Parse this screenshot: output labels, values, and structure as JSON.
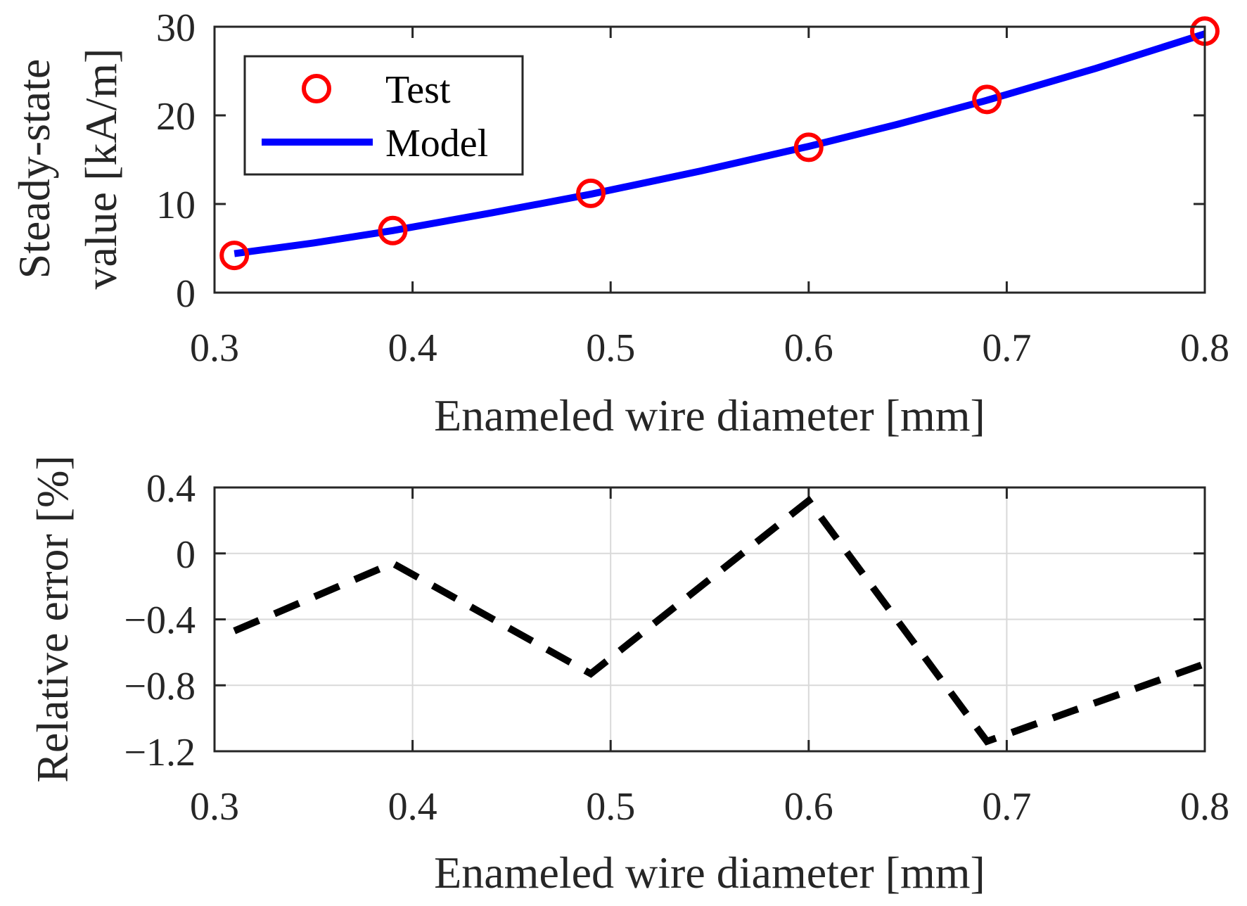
{
  "chart_data": [
    {
      "type": "line",
      "title": "",
      "xlabel": "Enameled wire diameter [mm]",
      "ylabel_lines": [
        "Steady-state",
        "value [kA/m]"
      ],
      "xlim": [
        0.3,
        0.8
      ],
      "ylim": [
        0,
        30
      ],
      "xticks": [
        0.3,
        0.4,
        0.5,
        0.6,
        0.7,
        0.8
      ],
      "xtick_labels": [
        "0.3",
        "0.4",
        "0.5",
        "0.6",
        "0.7",
        "0.8"
      ],
      "yticks": [
        0,
        10,
        20,
        30
      ],
      "ytick_labels": [
        "0",
        "10",
        "20",
        "30"
      ],
      "grid": false,
      "legend_position": "top-left",
      "series": [
        {
          "name": "Test",
          "style": "markers",
          "marker": "circle",
          "color": "#ff0000",
          "x": [
            0.31,
            0.39,
            0.49,
            0.6,
            0.69,
            0.8
          ],
          "y": [
            4.2,
            7.0,
            11.2,
            16.4,
            21.8,
            29.5
          ]
        },
        {
          "name": "Model",
          "style": "solid",
          "color": "#0000ff",
          "x": [
            0.31,
            0.35,
            0.39,
            0.44,
            0.49,
            0.545,
            0.6,
            0.645,
            0.69,
            0.745,
            0.8
          ],
          "y": [
            4.4,
            5.6,
            7.0,
            9.0,
            11.1,
            13.7,
            16.5,
            19.0,
            21.7,
            25.3,
            29.2
          ]
        }
      ]
    },
    {
      "type": "line",
      "title": "",
      "xlabel": "Enameled wire diameter [mm]",
      "ylabel": "Relative error [%]",
      "xlim": [
        0.3,
        0.8
      ],
      "ylim": [
        -1.2,
        0.4
      ],
      "xticks": [
        0.3,
        0.4,
        0.5,
        0.6,
        0.7,
        0.8
      ],
      "xtick_labels": [
        "0.3",
        "0.4",
        "0.5",
        "0.6",
        "0.7",
        "0.8"
      ],
      "yticks": [
        0.4,
        0,
        -0.4,
        -0.8,
        -1.2
      ],
      "ytick_labels": [
        "0.4",
        "0",
        "−0.4",
        "−0.8",
        "−1.2"
      ],
      "grid": true,
      "series": [
        {
          "name": "Relative error",
          "style": "dashed",
          "color": "#000000",
          "x": [
            0.31,
            0.39,
            0.49,
            0.6,
            0.69,
            0.8
          ],
          "y": [
            -0.47,
            -0.06,
            -0.73,
            0.32,
            -1.14,
            -0.67
          ]
        }
      ]
    }
  ]
}
